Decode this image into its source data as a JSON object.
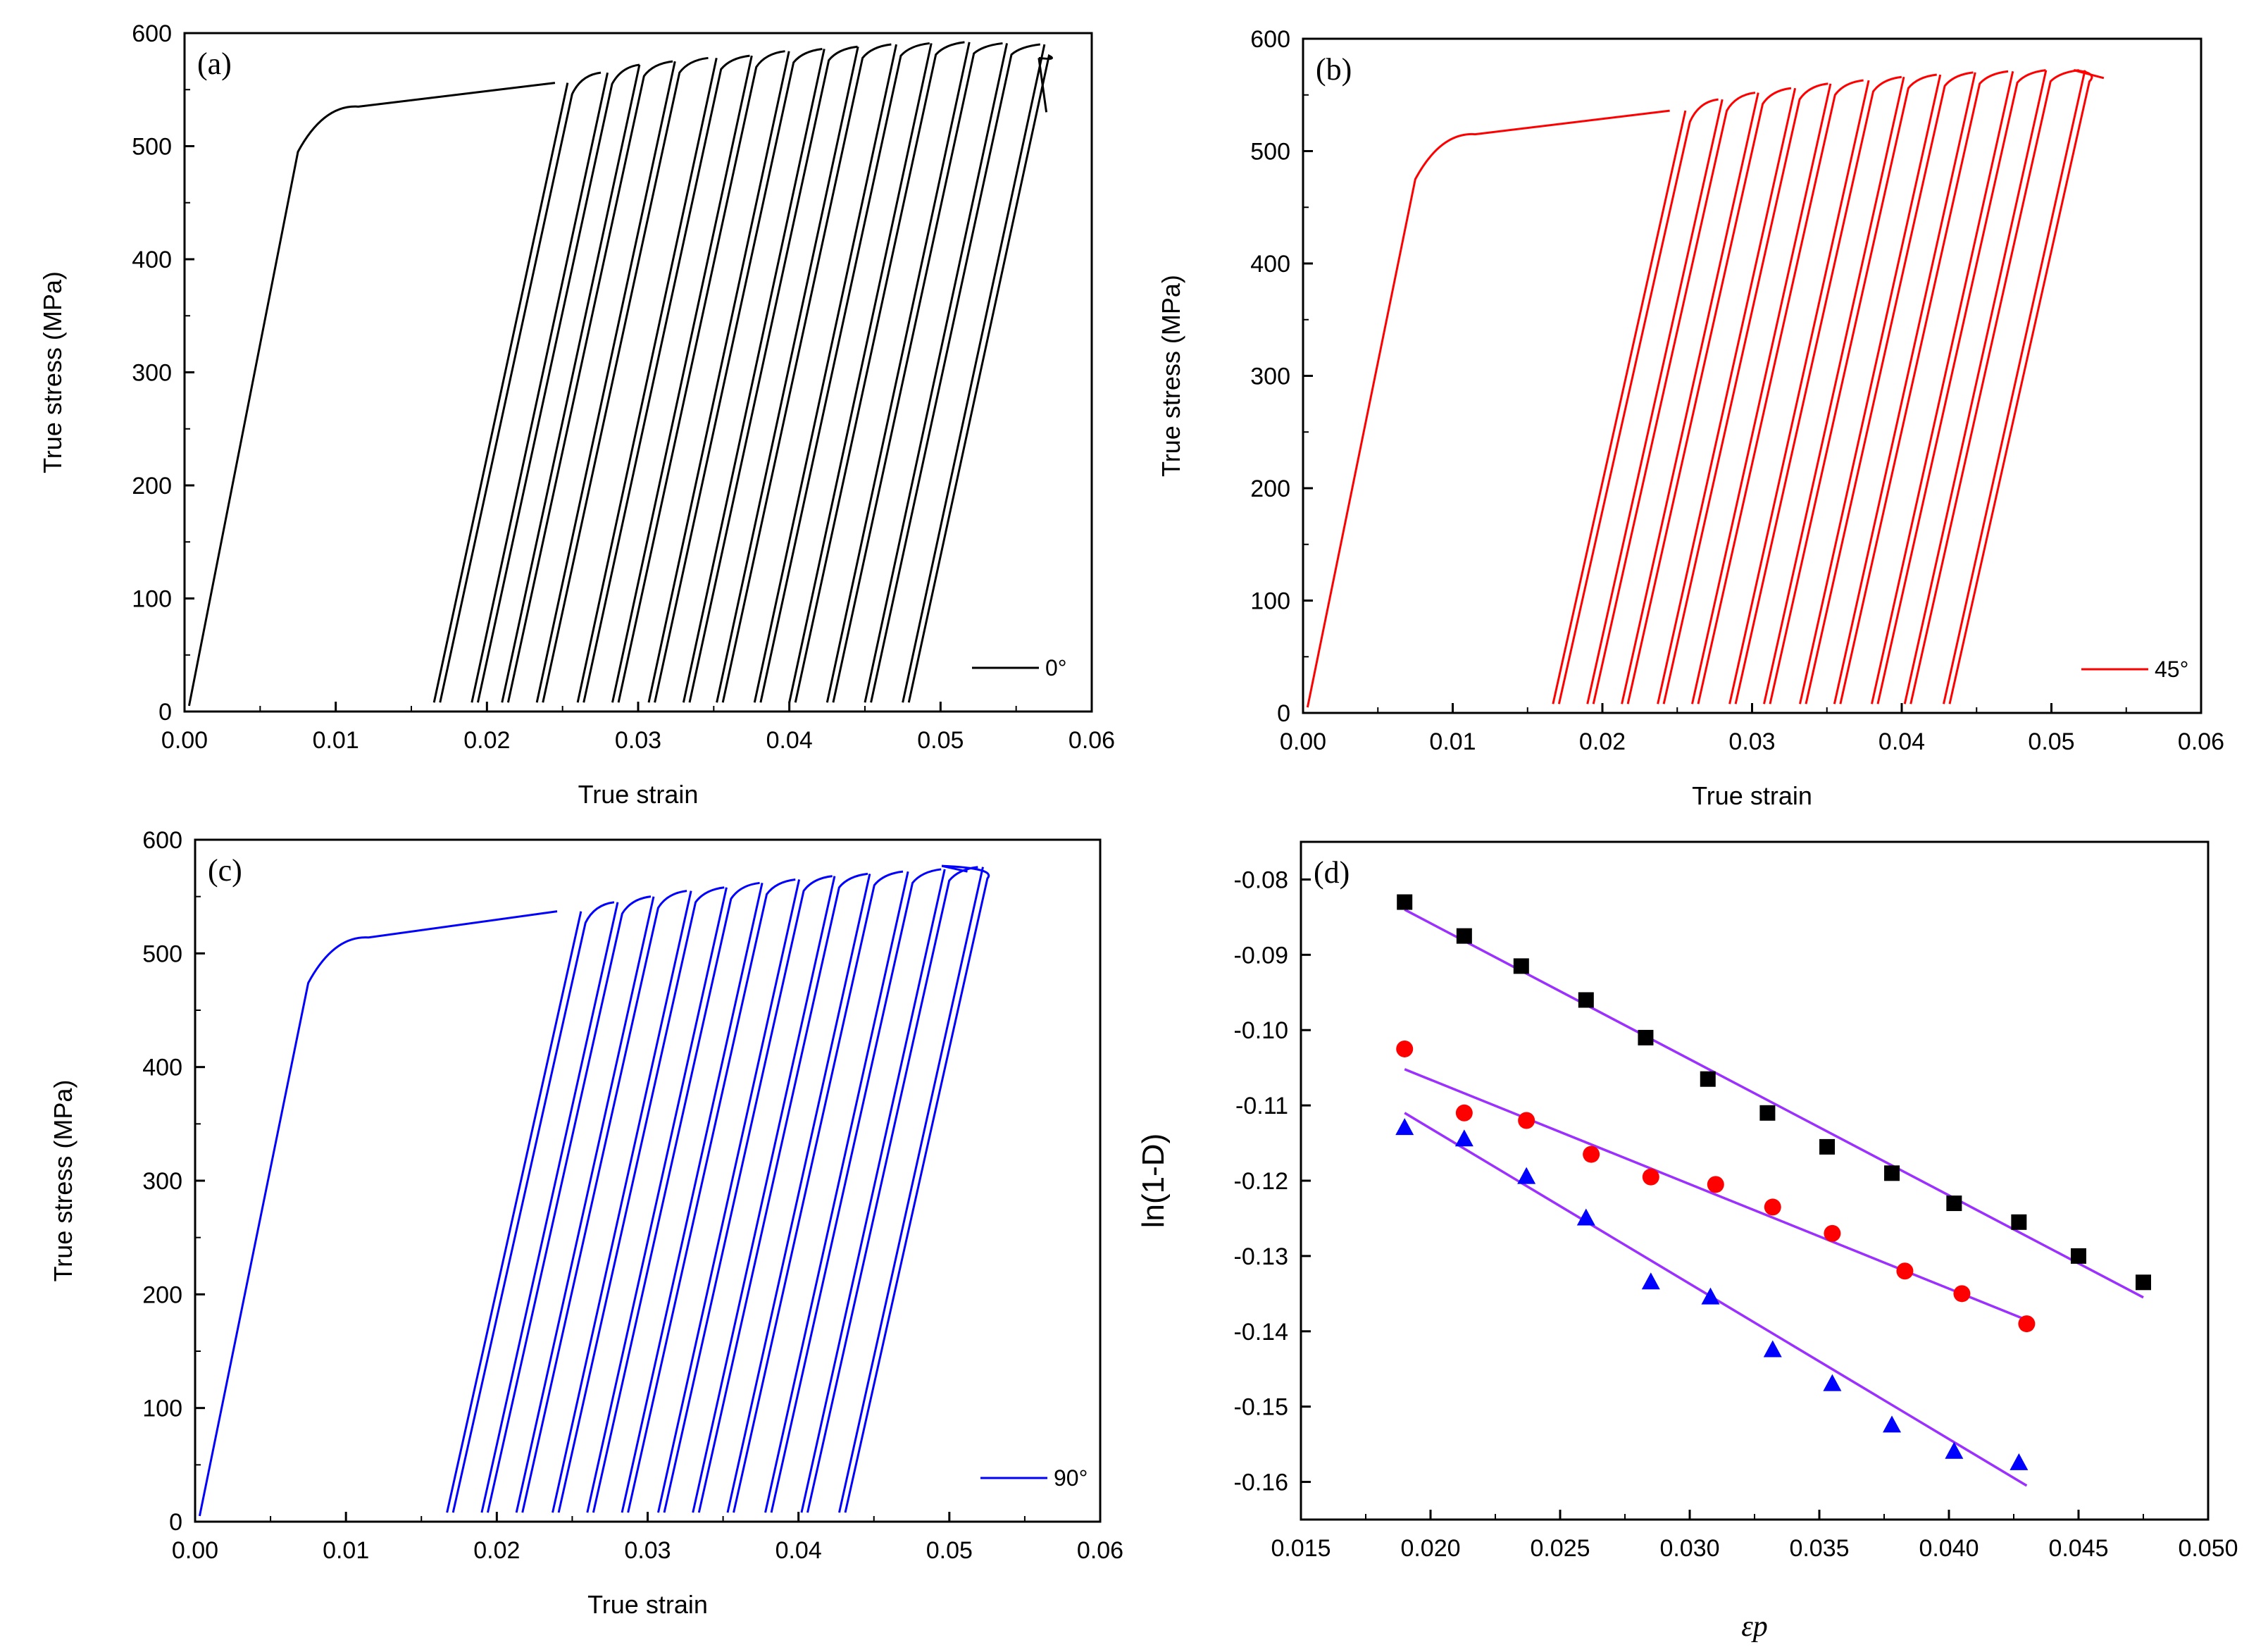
{
  "chart_data": [
    {
      "id": "a",
      "type": "line",
      "panel_label": "(a)",
      "xlabel": "True strain",
      "ylabel": "True stress (MPa)",
      "xlim": [
        0,
        0.06
      ],
      "ylim": [
        0,
        600
      ],
      "x_ticks": [
        "0.00",
        "0.01",
        "0.02",
        "0.03",
        "0.04",
        "0.05",
        "0.06"
      ],
      "y_ticks": [
        "0",
        "100",
        "200",
        "300",
        "400",
        "500",
        "600"
      ],
      "legend": "0°",
      "color": "#000000",
      "yield_stress": 535,
      "initial_peak": [
        0.0245,
        556
      ],
      "unload_strains": [
        0.0165,
        0.019,
        0.021,
        0.0233,
        0.026,
        0.0283,
        0.0307,
        0.033,
        0.0352,
        0.0377,
        0.04,
        0.0425,
        0.045,
        0.0475
      ],
      "peak_stresses": [
        556,
        565,
        572,
        575,
        578,
        580,
        584,
        586,
        588,
        590,
        591,
        592,
        591,
        590
      ],
      "final_peak": [
        0.0565,
        578
      ],
      "end_point": [
        0.057,
        530
      ]
    },
    {
      "id": "b",
      "type": "line",
      "panel_label": "(b)",
      "xlabel": "True strain",
      "ylabel": "True stress (MPa)",
      "xlim": [
        0,
        0.06
      ],
      "ylim": [
        0,
        600
      ],
      "x_ticks": [
        "0.00",
        "0.01",
        "0.02",
        "0.03",
        "0.04",
        "0.05",
        "0.06"
      ],
      "y_ticks": [
        "0",
        "100",
        "200",
        "300",
        "400",
        "500",
        "600"
      ],
      "legend": "45°",
      "color": "#ff0000",
      "yield_stress": 515,
      "initial_peak": [
        0.0245,
        536
      ],
      "unload_strains": [
        0.0167,
        0.019,
        0.0213,
        0.0237,
        0.026,
        0.0285,
        0.0308,
        0.0332,
        0.0355,
        0.038,
        0.0402,
        0.0428
      ],
      "peak_stresses": [
        536,
        546,
        552,
        556,
        560,
        563,
        566,
        568,
        570,
        571,
        572,
        572
      ],
      "final_peak": [
        0.0515,
        572
      ],
      "end_point": [
        0.0535,
        565
      ]
    },
    {
      "id": "c",
      "type": "line",
      "panel_label": "(c)",
      "xlabel": "True strain",
      "ylabel": "True stress (MPa)",
      "xlim": [
        0,
        0.06
      ],
      "ylim": [
        0,
        600
      ],
      "x_ticks": [
        "0.00",
        "0.01",
        "0.02",
        "0.03",
        "0.04",
        "0.05",
        "0.06"
      ],
      "y_ticks": [
        "0",
        "100",
        "200",
        "300",
        "400",
        "500",
        "600"
      ],
      "legend": "90°",
      "color": "#0000ff",
      "yield_stress": 514,
      "initial_peak": [
        0.024,
        537
      ],
      "unload_strains": [
        0.0167,
        0.019,
        0.0213,
        0.0237,
        0.026,
        0.0283,
        0.0307,
        0.033,
        0.0353,
        0.0378,
        0.0402,
        0.0427
      ],
      "peak_stresses": [
        537,
        545,
        550,
        555,
        558,
        562,
        565,
        568,
        570,
        572,
        574,
        576
      ],
      "final_peak": [
        0.0495,
        577
      ],
      "end_point": [
        0.0512,
        572
      ]
    },
    {
      "id": "d",
      "type": "scatter",
      "panel_label": "(d)",
      "xlabel": "εp",
      "ylabel": "ln(1-D)",
      "xlim": [
        0.015,
        0.05
      ],
      "ylim": [
        -0.165,
        -0.075
      ],
      "x_ticks": [
        "0.015",
        "0.020",
        "0.025",
        "0.030",
        "0.035",
        "0.040",
        "0.045",
        "0.050"
      ],
      "y_ticks": [
        "-0.08",
        "-0.09",
        "-0.10",
        "-0.11",
        "-0.12",
        "-0.13",
        "-0.14",
        "-0.15",
        "-0.16"
      ],
      "fit_color": "#9b30ff",
      "series": [
        {
          "name": "0°",
          "marker": "square",
          "color": "#000000",
          "x": [
            0.019,
            0.0213,
            0.0235,
            0.026,
            0.0283,
            0.0307,
            0.033,
            0.0353,
            0.0378,
            0.0402,
            0.0427,
            0.045,
            0.0475
          ],
          "y": [
            -0.083,
            -0.0875,
            -0.0915,
            -0.096,
            -0.101,
            -0.1065,
            -0.111,
            -0.1155,
            -0.119,
            -0.123,
            -0.1255,
            -0.13,
            -0.1335
          ],
          "fit": [
            [
              0.019,
              -0.084
            ],
            [
              0.0475,
              -0.1355
            ]
          ]
        },
        {
          "name": "45°",
          "marker": "circle",
          "color": "#ff0000",
          "x": [
            0.019,
            0.0213,
            0.0237,
            0.0262,
            0.0285,
            0.031,
            0.0332,
            0.0355,
            0.0383,
            0.0405,
            0.043
          ],
          "y": [
            -0.1025,
            -0.111,
            -0.112,
            -0.1165,
            -0.1195,
            -0.1205,
            -0.1235,
            -0.127,
            -0.132,
            -0.135,
            -0.139
          ],
          "fit": [
            [
              0.019,
              -0.1052
            ],
            [
              0.043,
              -0.1385
            ]
          ]
        },
        {
          "name": "90°",
          "marker": "triangle",
          "color": "#0000ff",
          "x": [
            0.019,
            0.0213,
            0.0237,
            0.026,
            0.0285,
            0.0308,
            0.0332,
            0.0355,
            0.0378,
            0.0402,
            0.0427
          ],
          "y": [
            -0.113,
            -0.1145,
            -0.1195,
            -0.125,
            -0.1335,
            -0.1355,
            -0.1425,
            -0.147,
            -0.1525,
            -0.156,
            -0.1575
          ],
          "fit": [
            [
              0.019,
              -0.111
            ],
            [
              0.043,
              -0.1605
            ]
          ]
        }
      ]
    }
  ]
}
